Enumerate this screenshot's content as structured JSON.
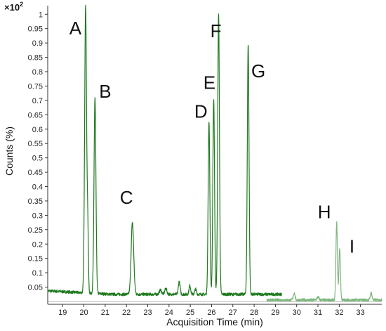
{
  "chart_data": {
    "type": "line",
    "xlabel": "Acquisition Time (min)",
    "ylabel": "Counts (%)",
    "y_scale_label": "×10",
    "y_scale_exponent": "2",
    "xlim": [
      18.3,
      34.0
    ],
    "ylim": [
      0.0,
      1.03
    ],
    "x_ticks": [
      19,
      20,
      21,
      22,
      23,
      24,
      25,
      26,
      27,
      28,
      29,
      30,
      31,
      32,
      33
    ],
    "y_ticks": [
      0.05,
      0.1,
      0.15,
      0.2,
      0.25,
      0.3,
      0.35,
      0.4,
      0.45,
      0.5,
      0.55,
      0.6,
      0.65,
      0.7,
      0.75,
      0.8,
      0.85,
      0.9,
      0.95,
      1
    ],
    "y_tick_labels": [
      "0.05",
      "0.1",
      "0.15",
      "0.2",
      "0.25",
      "0.3",
      "0.35",
      "0.4",
      "0.45",
      "0.5",
      "0.55",
      "0.6",
      "0.65",
      "0.7",
      "0.75",
      "0.8",
      "0.85",
      "0.9",
      "0.95",
      "1"
    ],
    "grid": false,
    "series": [
      {
        "color": "#1f7a1f",
        "baseline": 0.025,
        "x_range": [
          18.3,
          29.3
        ],
        "peaks": [
          {
            "x": 20.08,
            "y": 1.0,
            "width": 0.045
          },
          {
            "x": 20.18,
            "y": 0.22,
            "width": 0.03
          },
          {
            "x": 20.52,
            "y": 0.68,
            "width": 0.045
          },
          {
            "x": 22.28,
            "y": 0.25,
            "width": 0.06
          },
          {
            "x": 23.6,
            "y": 0.015,
            "width": 0.05
          },
          {
            "x": 23.85,
            "y": 0.02,
            "width": 0.05
          },
          {
            "x": 24.48,
            "y": 0.045,
            "width": 0.04
          },
          {
            "x": 24.98,
            "y": 0.03,
            "width": 0.04
          },
          {
            "x": 25.25,
            "y": 0.018,
            "width": 0.04
          },
          {
            "x": 25.88,
            "y": 0.6,
            "width": 0.04
          },
          {
            "x": 26.1,
            "y": 0.68,
            "width": 0.04
          },
          {
            "x": 26.33,
            "y": 0.98,
            "width": 0.04
          },
          {
            "x": 27.72,
            "y": 0.87,
            "width": 0.04
          }
        ]
      },
      {
        "color": "#7fb87f",
        "baseline": 0.005,
        "x_range": [
          28.6,
          34.0
        ],
        "peaks": [
          {
            "x": 29.88,
            "y": 0.025,
            "width": 0.04
          },
          {
            "x": 31.0,
            "y": 0.01,
            "width": 0.05
          },
          {
            "x": 31.88,
            "y": 0.27,
            "width": 0.035
          },
          {
            "x": 32.02,
            "y": 0.18,
            "width": 0.035
          },
          {
            "x": 33.5,
            "y": 0.025,
            "width": 0.04
          }
        ]
      }
    ],
    "annotations": [
      {
        "text": "A",
        "x": 19.6,
        "y": 0.93
      },
      {
        "text": "B",
        "x": 21.0,
        "y": 0.71
      },
      {
        "text": "C",
        "x": 22.0,
        "y": 0.34
      },
      {
        "text": "D",
        "x": 25.5,
        "y": 0.64
      },
      {
        "text": "E",
        "x": 25.9,
        "y": 0.74
      },
      {
        "text": "F",
        "x": 26.2,
        "y": 0.92
      },
      {
        "text": "G",
        "x": 28.2,
        "y": 0.78
      },
      {
        "text": "H",
        "x": 31.3,
        "y": 0.29
      },
      {
        "text": "I",
        "x": 32.6,
        "y": 0.17
      }
    ]
  }
}
